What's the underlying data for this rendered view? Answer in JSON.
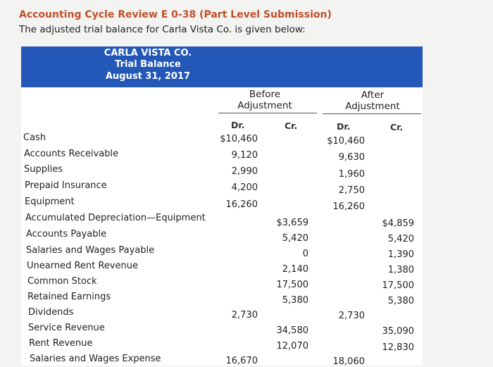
{
  "header": {
    "title": "Accounting Cycle Review E 0-38 (Part Level Submission)",
    "subtitle": "The adjusted trial balance for Carla Vista Co. is given below:"
  },
  "statement": {
    "company": "CARLA VISTA CO.",
    "name": "Trial Balance",
    "date": "August 31, 2017",
    "before_label": "Before",
    "before_label2": "Adjustment",
    "after_label": "After",
    "after_label2": "Adjustment",
    "dr": "Dr.",
    "cr": "Cr."
  },
  "rows": [
    {
      "account": "Cash",
      "before_dr": "$10,460",
      "before_cr": "",
      "after_dr": "$10,460",
      "after_cr": ""
    },
    {
      "account": "Accounts Receivable",
      "before_dr": "9,120",
      "before_cr": "",
      "after_dr": "9,630",
      "after_cr": ""
    },
    {
      "account": "Supplies",
      "before_dr": "2,990",
      "before_cr": "",
      "after_dr": "1,960",
      "after_cr": ""
    },
    {
      "account": "Prepaid Insurance",
      "before_dr": "4,200",
      "before_cr": "",
      "after_dr": "2,750",
      "after_cr": ""
    },
    {
      "account": "Equipment",
      "before_dr": "16,260",
      "before_cr": "",
      "after_dr": "16,260",
      "after_cr": ""
    },
    {
      "account": "Accumulated Depreciation—Equipment",
      "before_dr": "",
      "before_cr": "$3,659",
      "after_dr": "",
      "after_cr": "$4,859"
    },
    {
      "account": "Accounts Payable",
      "before_dr": "",
      "before_cr": "5,420",
      "after_dr": "",
      "after_cr": "5,420"
    },
    {
      "account": "Salaries and Wages Payable",
      "before_dr": "",
      "before_cr": "0",
      "after_dr": "",
      "after_cr": "1,390"
    },
    {
      "account": "Unearned Rent Revenue",
      "before_dr": "",
      "before_cr": "2,140",
      "after_dr": "",
      "after_cr": "1,380"
    },
    {
      "account": "Common Stock",
      "before_dr": "",
      "before_cr": "17,500",
      "after_dr": "",
      "after_cr": "17,500"
    },
    {
      "account": "Retained Earnings",
      "before_dr": "",
      "before_cr": "5,380",
      "after_dr": "",
      "after_cr": "5,380"
    },
    {
      "account": "Dividends",
      "before_dr": "2,730",
      "before_cr": "",
      "after_dr": "2,730",
      "after_cr": ""
    },
    {
      "account": "Service Revenue",
      "before_dr": "",
      "before_cr": "34,580",
      "after_dr": "",
      "after_cr": "35,090"
    },
    {
      "account": "Rent Revenue",
      "before_dr": "",
      "before_cr": "12,070",
      "after_dr": "",
      "after_cr": "12,830"
    },
    {
      "account": "Salaries and Wages Expense",
      "before_dr": "16,670",
      "before_cr": "",
      "after_dr": "18,060",
      "after_cr": ""
    }
  ]
}
